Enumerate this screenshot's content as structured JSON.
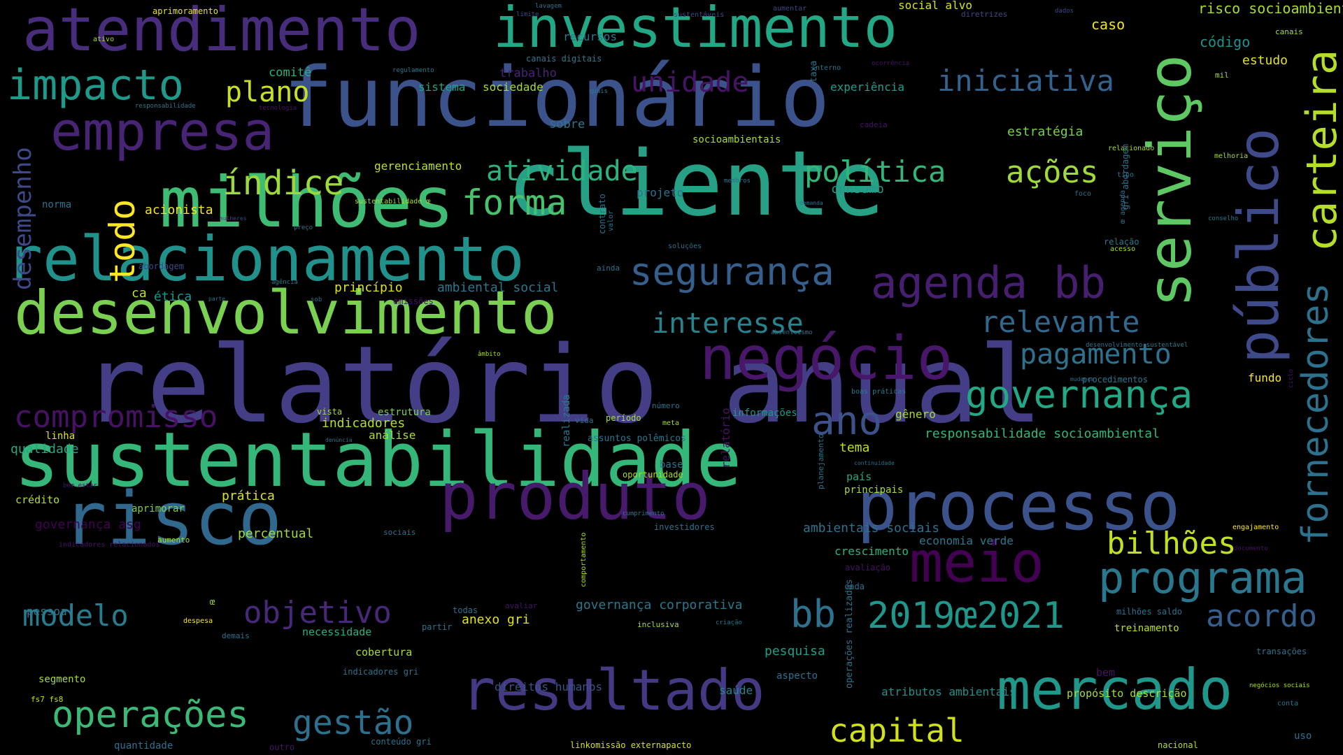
{
  "words": [
    {
      "id": "relatorio-anual",
      "text": "relatório anual",
      "color": "#433e85"
    },
    {
      "id": "funcionario",
      "text": "funcionário",
      "color": "#3b528b"
    },
    {
      "id": "cliente",
      "text": "cliente",
      "color": "#26a185"
    },
    {
      "id": "sustentabilidade",
      "text": "sustentabilidade",
      "color": "#35b779"
    },
    {
      "id": "milhoes",
      "text": "milhões",
      "color": "#3fbc73"
    },
    {
      "id": "relacionamento",
      "text": "relacionamento",
      "color": "#21918c"
    },
    {
      "id": "desenvolvimento",
      "text": "desenvolvimento",
      "color": "#7ad151"
    },
    {
      "id": "atendimento",
      "text": "atendimento",
      "color": "#472d7b"
    },
    {
      "id": "investimento",
      "text": "investimento",
      "color": "#22a884"
    },
    {
      "id": "risco",
      "text": "risco",
      "color": "#31688e"
    },
    {
      "id": "processo",
      "text": "processo",
      "color": "#3b528b"
    },
    {
      "id": "produto",
      "text": "produto",
      "color": "#481a6c"
    },
    {
      "id": "resultado",
      "text": "resultado",
      "color": "#443983"
    },
    {
      "id": "negocio",
      "text": "negócio",
      "color": "#481769"
    },
    {
      "id": "mercado",
      "text": "mercado",
      "color": "#1f988b"
    },
    {
      "id": "empresa",
      "text": "empresa",
      "color": "#482475"
    },
    {
      "id": "servico",
      "text": "serviço",
      "color": "#5ec962"
    },
    {
      "id": "publico",
      "text": "público",
      "color": "#3e4a89"
    },
    {
      "id": "carteira",
      "text": "carteira",
      "color": "#b5de2b"
    },
    {
      "id": "fornecedores",
      "text": "fornecedores",
      "color": "#2c728e"
    },
    {
      "id": "meio",
      "text": "meio",
      "color": "#440154"
    },
    {
      "id": "programa",
      "text": "programa",
      "color": "#2a788e"
    },
    {
      "id": "agenda-bb",
      "text": "agenda bb",
      "color": "#481f70"
    },
    {
      "id": "seguranca",
      "text": "segurança",
      "color": "#355f8d"
    },
    {
      "id": "governanca",
      "text": "governança",
      "color": "#22a884"
    },
    {
      "id": "impacto",
      "text": "impacto",
      "color": "#1f9a8a"
    },
    {
      "id": "operacoes",
      "text": "operações",
      "color": "#3aba76"
    },
    {
      "id": "gestao",
      "text": "gestão",
      "color": "#2d708e"
    },
    {
      "id": "capital",
      "text": "capital",
      "color": "#d0e11c"
    },
    {
      "id": "ano",
      "text": "ano",
      "color": "#3b528b"
    },
    {
      "id": "bb",
      "text": "bb",
      "color": "#2c728e"
    },
    {
      "id": "2019-2021",
      "text": "2019œ2021",
      "color": "#1f988b"
    },
    {
      "id": "bilhoes",
      "text": "bilhões",
      "color": "#c2df23"
    },
    {
      "id": "acordo",
      "text": "acordo",
      "color": "#355f8d"
    },
    {
      "id": "objetivo",
      "text": "objetivo",
      "color": "#482878"
    },
    {
      "id": "modelo",
      "text": "modelo",
      "color": "#287c8e"
    },
    {
      "id": "compromisso",
      "text": "compromisso",
      "color": "#471164"
    },
    {
      "id": "pagamento",
      "text": "pagamento",
      "color": "#2c728e"
    },
    {
      "id": "relevante",
      "text": "relevante",
      "color": "#31688e"
    },
    {
      "id": "interesse",
      "text": "interesse",
      "color": "#25848e"
    },
    {
      "id": "iniciativa",
      "text": "iniciativa",
      "color": "#33628d"
    },
    {
      "id": "unidade",
      "text": "unidade",
      "color": "#471365"
    },
    {
      "id": "plano",
      "text": "plano",
      "color": "#c8e020"
    },
    {
      "id": "indice",
      "text": "índice",
      "color": "#9bd93c"
    },
    {
      "id": "forma",
      "text": "forma",
      "color": "#4ac16d"
    },
    {
      "id": "atividade",
      "text": "atividade",
      "color": "#2db27d"
    },
    {
      "id": "politica",
      "text": "política",
      "color": "#34b679"
    },
    {
      "id": "acoes",
      "text": "ações",
      "color": "#a0da39"
    },
    {
      "id": "todo",
      "text": "todo",
      "color": "#fde725"
    },
    {
      "id": "desempenho",
      "text": "desempenho",
      "color": "#3e4989"
    },
    {
      "id": "caso",
      "text": "caso",
      "color": "#f1e51d"
    },
    {
      "id": "risco-socioambiental",
      "text": "risco socioambiental",
      "color": "#a8db34"
    },
    {
      "id": "codigo",
      "text": "código",
      "color": "#21918c"
    },
    {
      "id": "estudo",
      "text": "estudo",
      "color": "#e5e419"
    },
    {
      "id": "estrategia",
      "text": "estratégia",
      "color": "#7ad151"
    },
    {
      "id": "experiencia",
      "text": "experiência",
      "color": "#1f9e89"
    },
    {
      "id": "sistema",
      "text": "sistema",
      "color": "#20a386"
    },
    {
      "id": "sociedade",
      "text": "sociedade",
      "color": "#a5db36"
    },
    {
      "id": "trabalho",
      "text": "trabalho",
      "color": "#482475"
    },
    {
      "id": "comite",
      "text": "comitê",
      "color": "#2ab07f"
    },
    {
      "id": "recursos",
      "text": "recursos",
      "color": "#2a788e"
    },
    {
      "id": "canais-digitais",
      "text": "canais digitais",
      "color": "#2a788e"
    },
    {
      "id": "social-alvo",
      "text": "social alvo",
      "color": "#d5e21a"
    },
    {
      "id": "aprimoramento",
      "text": "aprimoramento",
      "color": "#e5e419"
    },
    {
      "id": "sobre",
      "text": "sobre",
      "color": "#2a788e"
    },
    {
      "id": "gerenciamento",
      "text": "gerenciamento",
      "color": "#bddf26"
    },
    {
      "id": "acionista",
      "text": "acionista",
      "color": "#f1e51d"
    },
    {
      "id": "consumo",
      "text": "consumo",
      "color": "#1f9a8a"
    },
    {
      "id": "projeto",
      "text": "projeto",
      "color": "#2c728e"
    },
    {
      "id": "socioambientais",
      "text": "socioambientais",
      "color": "#a8db34"
    },
    {
      "id": "principio",
      "text": "princípio",
      "color": "#dde318"
    },
    {
      "id": "ambiental-social",
      "text": "ambiental social",
      "color": "#2a788e"
    },
    {
      "id": "etica",
      "text": "ética",
      "color": "#1f978b"
    },
    {
      "id": "ca",
      "text": "ca",
      "color": "#c2df23"
    },
    {
      "id": "norma",
      "text": "norma",
      "color": "#2c728e"
    },
    {
      "id": "abordagem",
      "text": "abordagem",
      "color": "#3e4a89"
    },
    {
      "id": "indicadores",
      "text": "indicadores",
      "color": "#b5de2b"
    },
    {
      "id": "estrutura",
      "text": "estrutura",
      "color": "#7ad151"
    },
    {
      "id": "analise",
      "text": "análise",
      "color": "#addc30"
    },
    {
      "id": "qualidade",
      "text": "qualidade",
      "color": "#22a884"
    },
    {
      "id": "linha",
      "text": "linha",
      "color": "#e2e418"
    },
    {
      "id": "credito",
      "text": "crédito",
      "color": "#b5de2b"
    },
    {
      "id": "pratica",
      "text": "prática",
      "color": "#dde318"
    },
    {
      "id": "aprimorar",
      "text": "aprimorar",
      "color": "#7ad151"
    },
    {
      "id": "governanca-asg",
      "text": "governança asg",
      "color": "#440154"
    },
    {
      "id": "percentual",
      "text": "percentual",
      "color": "#a0da39"
    },
    {
      "id": "responsabilidade-socioambiental",
      "text": "responsabilidade socioambiental",
      "color": "#35b779"
    },
    {
      "id": "tema",
      "text": "tema",
      "color": "#bddf26"
    },
    {
      "id": "genero",
      "text": "gênero",
      "color": "#a2da37"
    },
    {
      "id": "informacoes",
      "text": "informações",
      "color": "#1f988b"
    },
    {
      "id": "principais",
      "text": "principais",
      "color": "#a8db34"
    },
    {
      "id": "pais",
      "text": "país",
      "color": "#22a884"
    },
    {
      "id": "fundo",
      "text": "fundo",
      "color": "#f8e621"
    },
    {
      "id": "procedimentos",
      "text": "procedimentos",
      "color": "#2a788e"
    },
    {
      "id": "ambientais-sociais",
      "text": "ambientais sociais",
      "color": "#2c728e"
    },
    {
      "id": "crescimento",
      "text": "crescimento",
      "color": "#2db27d"
    },
    {
      "id": "economia-verde",
      "text": "economia verde",
      "color": "#2a788e"
    },
    {
      "id": "governanca-corporativa",
      "text": "governança corporativa",
      "color": "#2a788e"
    },
    {
      "id": "pesquisa",
      "text": "pesquisa",
      "color": "#1f9e89"
    },
    {
      "id": "aspecto",
      "text": "aspecto",
      "color": "#2c728e"
    },
    {
      "id": "necessidade",
      "text": "necessidade",
      "color": "#2ab07f"
    },
    {
      "id": "anexo-gri",
      "text": "anexo gri",
      "color": "#e2e418"
    },
    {
      "id": "cobertura",
      "text": "cobertura",
      "color": "#addc30"
    },
    {
      "id": "segmento",
      "text": "segmento",
      "color": "#a8db34"
    },
    {
      "id": "pessoa",
      "text": "pessoa",
      "color": "#2a788e"
    },
    {
      "id": "direitos-humanos",
      "text": "direitos humanos",
      "color": "#3b528b"
    },
    {
      "id": "saude",
      "text": "saúde",
      "color": "#25848e"
    },
    {
      "id": "atributos-ambientais",
      "text": "atributos ambientais",
      "color": "#21918c"
    },
    {
      "id": "proposito-descricao",
      "text": "propósito descrição",
      "color": "#a8db34"
    },
    {
      "id": "treinamento",
      "text": "treinamento",
      "color": "#bddf26"
    },
    {
      "id": "engajamento",
      "text": "engajamento",
      "color": "#fde725"
    },
    {
      "id": "transacoes",
      "text": "transações",
      "color": "#2c728e"
    },
    {
      "id": "uso",
      "text": "uso",
      "color": "#2c728e"
    },
    {
      "id": "nacional",
      "text": "nacional",
      "color": "#b5de2b"
    },
    {
      "id": "quantidade",
      "text": "quantidade",
      "color": "#2c728e"
    },
    {
      "id": "conteudo-gri",
      "text": "conteúdo gri",
      "color": "#2c728e"
    },
    {
      "id": "linkomissao",
      "text": "linkomissão externapacto",
      "color": "#d5e21a"
    },
    {
      "id": "fs7-fs8",
      "text": "fs7 fs8",
      "color": "#c8e020"
    },
    {
      "id": "indicadores-gri",
      "text": "indicadores gri",
      "color": "#2c728e"
    },
    {
      "id": "milhoes-saldo",
      "text": "milhões saldo",
      "color": "#2c728e"
    },
    {
      "id": "bem",
      "text": "bem",
      "color": "#471365"
    },
    {
      "id": "conta",
      "text": "conta",
      "color": "#2a788e"
    },
    {
      "id": "negocios-sociais",
      "text": "negócios sociais",
      "color": "#a8db34"
    },
    {
      "id": "lavagem",
      "text": "lavagem",
      "color": "#2c728e"
    },
    {
      "id": "limite",
      "text": "limite",
      "color": "#3e4989"
    },
    {
      "id": "sustentaveis",
      "text": "sustentáveis",
      "color": "#3e4989"
    },
    {
      "id": "aumentar",
      "text": "aumentar",
      "color": "#3e4989"
    },
    {
      "id": "diretrizes",
      "text": "diretrizes",
      "color": "#3e4989"
    },
    {
      "id": "dados",
      "text": "dados",
      "color": "#3e4989"
    },
    {
      "id": "ativo",
      "text": "ativo",
      "color": "#addc30"
    },
    {
      "id": "regulamento",
      "text": "regulamento",
      "color": "#2a788e"
    },
    {
      "id": "quais",
      "text": "quais",
      "color": "#2a788e"
    },
    {
      "id": "interno",
      "text": "interno",
      "color": "#2c728e"
    },
    {
      "id": "ocorrencia",
      "text": "ocorrência",
      "color": "#471365"
    },
    {
      "id": "canais",
      "text": "canais",
      "color": "#a8db34"
    },
    {
      "id": "mil",
      "text": "mil",
      "color": "#a8db34"
    },
    {
      "id": "responsabilidade",
      "text": "responsabilidade",
      "color": "#2a788e"
    },
    {
      "id": "tecnologia",
      "text": "tecnologia",
      "color": "#471365"
    },
    {
      "id": "cadeia",
      "text": "cadeia",
      "color": "#471365"
    },
    {
      "id": "relacionado",
      "text": "relacionado",
      "color": "#a8db34"
    },
    {
      "id": "melhoria",
      "text": "melhoria",
      "color": "#a8db34"
    },
    {
      "id": "tipo",
      "text": "tipo",
      "color": "#2c728e"
    },
    {
      "id": "foco",
      "text": "foco",
      "color": "#2c728e"
    },
    {
      "id": "conselho",
      "text": "conselho",
      "color": "#2a788e"
    },
    {
      "id": "relacao",
      "text": "relação",
      "color": "#2a788e"
    },
    {
      "id": "acesso",
      "text": "acesso",
      "color": "#a8db34"
    },
    {
      "id": "membros",
      "text": "membros",
      "color": "#2c728e"
    },
    {
      "id": "demanda",
      "text": "demanda",
      "color": "#2c728e"
    },
    {
      "id": "sustentabilidade-oe",
      "text": "sustentabilidade œ",
      "color": "#a8db34"
    },
    {
      "id": "mulheres",
      "text": "mulheres",
      "color": "#3e4989"
    },
    {
      "id": "preco",
      "text": "preço",
      "color": "#2a788e"
    },
    {
      "id": "solucoes",
      "text": "soluções",
      "color": "#2c728e"
    },
    {
      "id": "ainda",
      "text": "ainda",
      "color": "#2c728e"
    },
    {
      "id": "agencia",
      "text": "agência",
      "color": "#2a788e"
    },
    {
      "id": "parte",
      "text": "parte",
      "color": "#2c728e"
    },
    {
      "id": "sob",
      "text": "sob",
      "color": "#2c728e"
    },
    {
      "id": "emissoes",
      "text": "emissões",
      "color": "#471365"
    },
    {
      "id": "absenteismo",
      "text": "absenteísmo",
      "color": "#2c728e"
    },
    {
      "id": "ambito",
      "text": "âmbito",
      "color": "#a8db34"
    },
    {
      "id": "desenvolvimento-sustentavel",
      "text": "desenvolvimento sustentável",
      "color": "#2a788e"
    },
    {
      "id": "mudanca",
      "text": "mudança",
      "color": "#2c728e"
    },
    {
      "id": "boas-praticas",
      "text": "boas práticas",
      "color": "#2a788e"
    },
    {
      "id": "numero",
      "text": "número",
      "color": "#2c728e"
    },
    {
      "id": "vista",
      "text": "vista",
      "color": "#a8db34"
    },
    {
      "id": "vida",
      "text": "vida",
      "color": "#2c728e"
    },
    {
      "id": "periodo",
      "text": "período",
      "color": "#a8db34"
    },
    {
      "id": "meta",
      "text": "meta",
      "color": "#a8db34"
    },
    {
      "id": "denuncia",
      "text": "denúncia",
      "color": "#2c728e"
    },
    {
      "id": "assuntos-polemicos",
      "text": "assuntos polêmicos",
      "color": "#2a788e"
    },
    {
      "id": "base",
      "text": "base",
      "color": "#2c728e"
    },
    {
      "id": "oportunidade",
      "text": "oportunidade",
      "color": "#a8db34"
    },
    {
      "id": "continuidade",
      "text": "continuidade",
      "color": "#2c728e"
    },
    {
      "id": "bem-estar",
      "text": "bem estar",
      "color": "#471365"
    },
    {
      "id": "cumprimento",
      "text": "cumprimento",
      "color": "#2c728e"
    },
    {
      "id": "investidores",
      "text": "investidores",
      "color": "#2c728e"
    },
    {
      "id": "sociais",
      "text": "sociais",
      "color": "#2c728e"
    },
    {
      "id": "indicadores-relacionados",
      "text": "indicadores relacionados",
      "color": "#471365"
    },
    {
      "id": "aumento",
      "text": "aumento",
      "color": "#a8db34"
    },
    {
      "id": "despesa",
      "text": "despesa",
      "color": "#fde725"
    },
    {
      "id": "demais",
      "text": "demais",
      "color": "#2c728e"
    },
    {
      "id": "todas",
      "text": "todas",
      "color": "#2c728e"
    },
    {
      "id": "avaliar",
      "text": "avaliar",
      "color": "#471365"
    },
    {
      "id": "partir",
      "text": "partir",
      "color": "#2c728e"
    },
    {
      "id": "inclusiva",
      "text": "inclusiva",
      "color": "#a8db34"
    },
    {
      "id": "criacao",
      "text": "criação",
      "color": "#2c728e"
    },
    {
      "id": "avaliacao",
      "text": "avaliação",
      "color": "#471365"
    },
    {
      "id": "cada",
      "text": "cada",
      "color": "#2c728e"
    },
    {
      "id": "documento",
      "text": "documento",
      "color": "#471365"
    },
    {
      "id": "oe",
      "text": "œ",
      "color": "#a8db34"
    },
    {
      "id": "outro",
      "text": "outro",
      "color": "#471365"
    },
    {
      "id": "taxa",
      "text": "taxa",
      "color": "#2c728e"
    },
    {
      "id": "contrato",
      "text": "contrato",
      "color": "#2c728e"
    },
    {
      "id": "valor",
      "text": "valor",
      "color": "#2c728e"
    },
    {
      "id": "realizada",
      "text": "realizada",
      "color": "#2a788e"
    },
    {
      "id": "relatorio",
      "text": "relatório",
      "color": "#471365"
    },
    {
      "id": "planejamento",
      "text": "planejamento",
      "color": "#2c728e"
    },
    {
      "id": "comportamento",
      "text": "comportamento",
      "color": "#a8db34"
    },
    {
      "id": "operacoes-realizadas",
      "text": "operações realizadas",
      "color": "#2c728e"
    },
    {
      "id": "gri-abordagem",
      "text": "gri abordagem",
      "color": "#2c728e"
    },
    {
      "id": "oe-agenda",
      "text": "œ agenda",
      "color": "#2c728e"
    },
    {
      "id": "ciclo",
      "text": "ciclo",
      "color": "#471365"
    }
  ]
}
